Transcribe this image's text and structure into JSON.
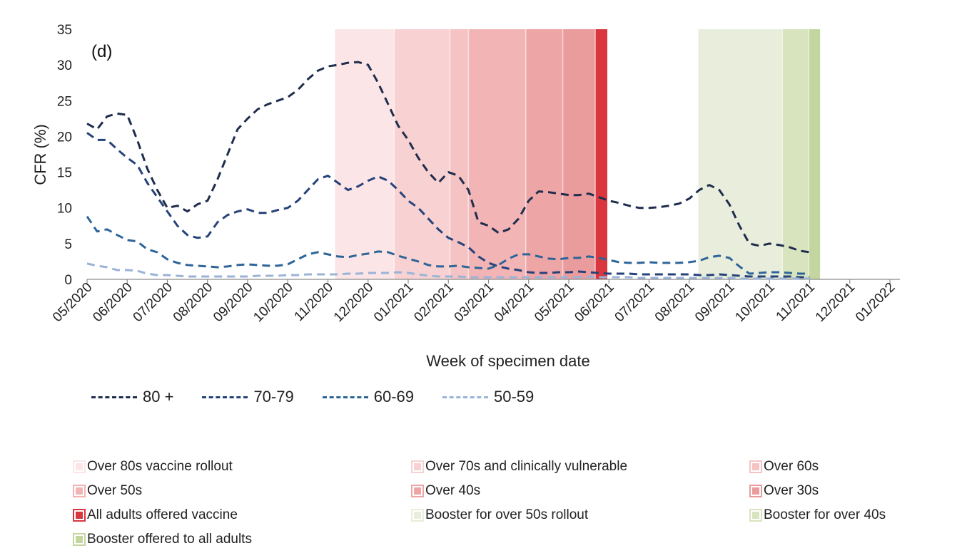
{
  "chart_data": {
    "type": "line",
    "panel_label": "(d)",
    "xlabel": "Week of specimen date",
    "ylabel": "CFR (%)",
    "ylim": [
      0,
      35
    ],
    "yticks": [
      0,
      5,
      10,
      15,
      20,
      25,
      30,
      35
    ],
    "x_tick_labels": [
      "05/2020",
      "06/2020",
      "07/2020",
      "08/2020",
      "09/2020",
      "10/2020",
      "11/2020",
      "12/2020",
      "01/2021",
      "02/2021",
      "03/2021",
      "04/2021",
      "05/2021",
      "06/2021",
      "07/2021",
      "08/2021",
      "09/2021",
      "10/2021",
      "11/2021",
      "12/2021",
      "01/2022"
    ],
    "grid": false,
    "legend_position": "bottom",
    "series": [
      {
        "name": "80 +",
        "color": "#1f2d4d",
        "points": [
          [
            0,
            21.8
          ],
          [
            0.25,
            21
          ],
          [
            0.5,
            22.8
          ],
          [
            0.75,
            23.2
          ],
          [
            1,
            23
          ],
          [
            1.25,
            19.5
          ],
          [
            1.5,
            15.5
          ],
          [
            1.75,
            12.5
          ],
          [
            2,
            10
          ],
          [
            2.25,
            10.3
          ],
          [
            2.5,
            9.5
          ],
          [
            2.75,
            10.5
          ],
          [
            3,
            11
          ],
          [
            3.25,
            14
          ],
          [
            3.5,
            17.5
          ],
          [
            3.75,
            21
          ],
          [
            4,
            22.5
          ],
          [
            4.25,
            23.8
          ],
          [
            4.5,
            24.5
          ],
          [
            4.75,
            25
          ],
          [
            5,
            25.5
          ],
          [
            5.25,
            26.5
          ],
          [
            5.5,
            28
          ],
          [
            5.75,
            29.2
          ],
          [
            6,
            29.8
          ],
          [
            6.25,
            30
          ],
          [
            6.5,
            30.3
          ],
          [
            6.75,
            30.4
          ],
          [
            7,
            30
          ],
          [
            7.25,
            27.5
          ],
          [
            7.5,
            24.5
          ],
          [
            7.75,
            21.5
          ],
          [
            8,
            19.5
          ],
          [
            8.25,
            17
          ],
          [
            8.5,
            15
          ],
          [
            8.75,
            13.5
          ],
          [
            9,
            15
          ],
          [
            9.25,
            14.5
          ],
          [
            9.5,
            12.5
          ],
          [
            9.75,
            8
          ],
          [
            10,
            7.5
          ],
          [
            10.25,
            6.5
          ],
          [
            10.5,
            7
          ],
          [
            10.75,
            8.5
          ],
          [
            11,
            11
          ],
          [
            11.25,
            12.3
          ],
          [
            11.5,
            12.2
          ],
          [
            11.75,
            12
          ],
          [
            12,
            11.8
          ],
          [
            12.25,
            11.8
          ],
          [
            12.5,
            12
          ],
          [
            12.75,
            11.5
          ],
          [
            13,
            11
          ],
          [
            13.25,
            10.7
          ],
          [
            13.5,
            10.3
          ],
          [
            13.75,
            10
          ],
          [
            14,
            10
          ],
          [
            14.25,
            10.1
          ],
          [
            14.5,
            10.3
          ],
          [
            14.75,
            10.6
          ],
          [
            15,
            11.3
          ],
          [
            15.25,
            12.5
          ],
          [
            15.5,
            13.2
          ],
          [
            15.75,
            12.5
          ],
          [
            16,
            10.5
          ],
          [
            16.25,
            7.5
          ],
          [
            16.5,
            5
          ],
          [
            16.75,
            4.7
          ],
          [
            17,
            5
          ],
          [
            17.25,
            4.8
          ],
          [
            17.5,
            4.5
          ],
          [
            17.75,
            4
          ],
          [
            18,
            3.8
          ]
        ]
      },
      {
        "name": "70-79",
        "color": "#26427a",
        "points": [
          [
            0,
            20.5
          ],
          [
            0.25,
            19.5
          ],
          [
            0.5,
            19.5
          ],
          [
            0.75,
            18.2
          ],
          [
            1,
            17
          ],
          [
            1.25,
            16
          ],
          [
            1.5,
            13.5
          ],
          [
            1.75,
            11.5
          ],
          [
            2,
            9.5
          ],
          [
            2.25,
            7.5
          ],
          [
            2.5,
            6.2
          ],
          [
            2.75,
            5.8
          ],
          [
            3,
            6
          ],
          [
            3.25,
            8
          ],
          [
            3.5,
            9
          ],
          [
            3.75,
            9.5
          ],
          [
            4,
            9.8
          ],
          [
            4.25,
            9.3
          ],
          [
            4.5,
            9.3
          ],
          [
            4.75,
            9.7
          ],
          [
            5,
            10
          ],
          [
            5.25,
            11
          ],
          [
            5.5,
            12.5
          ],
          [
            5.75,
            14
          ],
          [
            6,
            14.5
          ],
          [
            6.25,
            13.5
          ],
          [
            6.5,
            12.5
          ],
          [
            6.75,
            13
          ],
          [
            7,
            13.8
          ],
          [
            7.25,
            14.4
          ],
          [
            7.5,
            13.8
          ],
          [
            7.75,
            12.5
          ],
          [
            8,
            11
          ],
          [
            8.25,
            10
          ],
          [
            8.5,
            8.5
          ],
          [
            8.75,
            7
          ],
          [
            9,
            5.8
          ],
          [
            9.25,
            5.2
          ],
          [
            9.5,
            4.5
          ],
          [
            9.75,
            3.2
          ],
          [
            10,
            2.3
          ],
          [
            10.25,
            1.8
          ],
          [
            10.5,
            1.5
          ],
          [
            10.75,
            1.3
          ],
          [
            11,
            1
          ],
          [
            11.25,
            0.9
          ],
          [
            11.5,
            0.9
          ],
          [
            11.75,
            1
          ],
          [
            12,
            1
          ],
          [
            12.25,
            1.1
          ],
          [
            12.5,
            1
          ],
          [
            12.75,
            0.9
          ],
          [
            13,
            0.8
          ],
          [
            13.25,
            0.8
          ],
          [
            13.5,
            0.8
          ],
          [
            13.75,
            0.7
          ],
          [
            14,
            0.7
          ],
          [
            14.25,
            0.7
          ],
          [
            14.5,
            0.7
          ],
          [
            14.75,
            0.7
          ],
          [
            15,
            0.7
          ],
          [
            15.25,
            0.6
          ],
          [
            15.5,
            0.6
          ],
          [
            15.75,
            0.7
          ],
          [
            16,
            0.6
          ],
          [
            16.25,
            0.5
          ],
          [
            16.5,
            0.4
          ],
          [
            16.75,
            0.4
          ],
          [
            17,
            0.4
          ],
          [
            17.25,
            0.4
          ],
          [
            17.5,
            0.4
          ],
          [
            17.75,
            0.3
          ],
          [
            18,
            0.3
          ]
        ]
      },
      {
        "name": "60-69",
        "color": "#2e6599",
        "points": [
          [
            0,
            8.8
          ],
          [
            0.25,
            6.7
          ],
          [
            0.5,
            7
          ],
          [
            0.75,
            6.2
          ],
          [
            1,
            5.5
          ],
          [
            1.25,
            5.3
          ],
          [
            1.5,
            4.2
          ],
          [
            1.75,
            3.8
          ],
          [
            2,
            2.8
          ],
          [
            2.25,
            2.3
          ],
          [
            2.5,
            2
          ],
          [
            2.75,
            1.9
          ],
          [
            3,
            1.8
          ],
          [
            3.25,
            1.7
          ],
          [
            3.5,
            1.8
          ],
          [
            3.75,
            2
          ],
          [
            4,
            2.1
          ],
          [
            4.25,
            2
          ],
          [
            4.5,
            1.9
          ],
          [
            4.75,
            1.9
          ],
          [
            5,
            2.1
          ],
          [
            5.25,
            2.8
          ],
          [
            5.5,
            3.5
          ],
          [
            5.75,
            3.8
          ],
          [
            6,
            3.5
          ],
          [
            6.25,
            3.2
          ],
          [
            6.5,
            3.1
          ],
          [
            6.75,
            3.4
          ],
          [
            7,
            3.6
          ],
          [
            7.25,
            3.9
          ],
          [
            7.5,
            3.8
          ],
          [
            7.75,
            3.3
          ],
          [
            8,
            2.9
          ],
          [
            8.25,
            2.5
          ],
          [
            8.5,
            2
          ],
          [
            8.75,
            1.8
          ],
          [
            9,
            1.8
          ],
          [
            9.25,
            1.9
          ],
          [
            9.5,
            1.7
          ],
          [
            9.75,
            1.6
          ],
          [
            10,
            1.5
          ],
          [
            10.25,
            2
          ],
          [
            10.5,
            2.9
          ],
          [
            10.75,
            3.5
          ],
          [
            11,
            3.5
          ],
          [
            11.25,
            3.2
          ],
          [
            11.5,
            2.9
          ],
          [
            11.75,
            2.8
          ],
          [
            12,
            3
          ],
          [
            12.25,
            3
          ],
          [
            12.5,
            3.2
          ],
          [
            12.75,
            3
          ],
          [
            13,
            2.7
          ],
          [
            13.25,
            2.4
          ],
          [
            13.5,
            2.3
          ],
          [
            13.75,
            2.3
          ],
          [
            14,
            2.4
          ],
          [
            14.25,
            2.3
          ],
          [
            14.5,
            2.3
          ],
          [
            14.75,
            2.3
          ],
          [
            15,
            2.4
          ],
          [
            15.25,
            2.6
          ],
          [
            15.5,
            3.1
          ],
          [
            15.75,
            3.3
          ],
          [
            16,
            3
          ],
          [
            16.25,
            1.8
          ],
          [
            16.5,
            0.8
          ],
          [
            16.75,
            0.9
          ],
          [
            17,
            1
          ],
          [
            17.25,
            1
          ],
          [
            17.5,
            0.9
          ],
          [
            17.75,
            0.8
          ],
          [
            18,
            0.8
          ]
        ]
      },
      {
        "name": "50-59",
        "color": "#9bb3d6",
        "points": [
          [
            0,
            2.2
          ],
          [
            0.25,
            1.9
          ],
          [
            0.5,
            1.7
          ],
          [
            0.75,
            1.3
          ],
          [
            1,
            1.3
          ],
          [
            1.25,
            1.2
          ],
          [
            1.5,
            0.8
          ],
          [
            1.75,
            0.6
          ],
          [
            2,
            0.6
          ],
          [
            2.25,
            0.5
          ],
          [
            2.5,
            0.4
          ],
          [
            2.75,
            0.4
          ],
          [
            3,
            0.4
          ],
          [
            3.25,
            0.4
          ],
          [
            3.5,
            0.4
          ],
          [
            3.75,
            0.4
          ],
          [
            4,
            0.4
          ],
          [
            4.25,
            0.5
          ],
          [
            4.5,
            0.5
          ],
          [
            4.75,
            0.5
          ],
          [
            5,
            0.6
          ],
          [
            5.25,
            0.6
          ],
          [
            5.5,
            0.7
          ],
          [
            5.75,
            0.7
          ],
          [
            6,
            0.7
          ],
          [
            6.25,
            0.7
          ],
          [
            6.5,
            0.8
          ],
          [
            6.75,
            0.8
          ],
          [
            7,
            0.9
          ],
          [
            7.25,
            0.9
          ],
          [
            7.5,
            0.9
          ],
          [
            7.75,
            1
          ],
          [
            8,
            0.9
          ],
          [
            8.25,
            0.7
          ],
          [
            8.5,
            0.5
          ],
          [
            8.75,
            0.4
          ],
          [
            9,
            0.4
          ],
          [
            9.25,
            0.4
          ],
          [
            9.5,
            0.3
          ],
          [
            9.75,
            0.3
          ],
          [
            10,
            0.3
          ],
          [
            10.25,
            0.3
          ],
          [
            10.5,
            0.3
          ],
          [
            10.75,
            0.3
          ],
          [
            11,
            0.3
          ],
          [
            11.25,
            0.3
          ],
          [
            11.5,
            0.3
          ],
          [
            11.75,
            0.3
          ],
          [
            12,
            0.3
          ],
          [
            12.25,
            0.3
          ],
          [
            12.5,
            0.4
          ],
          [
            12.75,
            0.3
          ],
          [
            13,
            0.3
          ],
          [
            13.25,
            0.3
          ],
          [
            13.5,
            0.3
          ],
          [
            13.75,
            0.2
          ],
          [
            14,
            0.2
          ],
          [
            14.25,
            0.2
          ],
          [
            14.5,
            0.2
          ],
          [
            14.75,
            0.2
          ],
          [
            15,
            0.2
          ],
          [
            15.25,
            0.2
          ],
          [
            15.5,
            0.2
          ],
          [
            15.75,
            0.2
          ],
          [
            16,
            0.2
          ],
          [
            16.25,
            0.1
          ],
          [
            16.5,
            0.1
          ],
          [
            16.75,
            0.1
          ],
          [
            17,
            0.1
          ],
          [
            17.25,
            0.1
          ],
          [
            17.5,
            0.1
          ],
          [
            17.75,
            0.1
          ],
          [
            18,
            0.1
          ]
        ]
      }
    ],
    "shaded_periods": [
      {
        "label": "Over 80s vaccine rollout",
        "color": "#fbe5e6",
        "start": 6.17,
        "end": 7.65
      },
      {
        "label": "Over 70s and clinically vulnerable",
        "color": "#f8d2d3",
        "start": 7.65,
        "end": 9.04
      },
      {
        "label": "Over 60s",
        "color": "#f5c3c4",
        "start": 9.04,
        "end": 9.5
      },
      {
        "label": "Over 50s",
        "color": "#f2b4b5",
        "start": 9.5,
        "end": 10.93
      },
      {
        "label": "Over 40s",
        "color": "#eda5a6",
        "start": 10.93,
        "end": 11.85
      },
      {
        "label": "Over 30s",
        "color": "#ea9b9c",
        "start": 11.85,
        "end": 12.66
      },
      {
        "label": "All adults offered vaccine",
        "color": "#d9363e",
        "start": 12.66,
        "end": 12.96
      },
      {
        "label": "Booster for over 50s rollout",
        "color": "#e8eedb",
        "start": 15.22,
        "end": 17.32
      },
      {
        "label": "Booster for over 40s",
        "color": "#d8e4be",
        "start": 17.32,
        "end": 17.98
      },
      {
        "label": "Booster offered to all adults",
        "color": "#c4d6a0",
        "start": 17.98,
        "end": 18.26
      }
    ]
  }
}
